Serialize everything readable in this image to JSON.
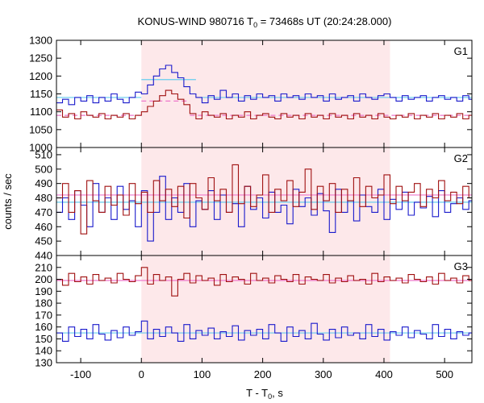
{
  "figure": {
    "title": {
      "prefix": "KONUS-WIND 980716 T",
      "subscript": "0",
      "suffix": " = 73468s UT (20:24:28.000)"
    },
    "xlabel": {
      "prefix": "T - T",
      "subscript": "0",
      "suffix": ", s"
    },
    "ylabel": "counts / sec",
    "colors": {
      "blue_series": "#1a1acc",
      "red_series": "#a01010",
      "blue_fit": "#66ccee",
      "red_fit": "#ee77cc",
      "shade": "#fde8ea"
    }
  },
  "chart_data": [
    {
      "type": "line",
      "panel": "G1",
      "title": "G1",
      "xlim": [
        -140,
        545
      ],
      "ylim": [
        1000,
        1300
      ],
      "yticks": [
        1000,
        1050,
        1100,
        1150,
        1200,
        1250,
        1300
      ],
      "xticks": [
        -100,
        0,
        100,
        200,
        300,
        400,
        500
      ],
      "shaded_interval": [
        0,
        410
      ],
      "series": [
        {
          "color": "blue",
          "x": [
            -140,
            -130,
            -120,
            -110,
            -100,
            -90,
            -80,
            -70,
            -60,
            -50,
            -40,
            -30,
            -20,
            -10,
            0,
            10,
            20,
            30,
            40,
            50,
            60,
            70,
            80,
            90,
            100,
            110,
            120,
            130,
            140,
            150,
            160,
            170,
            180,
            190,
            200,
            210,
            220,
            230,
            240,
            250,
            260,
            270,
            280,
            290,
            300,
            310,
            320,
            330,
            340,
            350,
            360,
            370,
            380,
            390,
            400,
            410,
            420,
            430,
            440,
            450,
            460,
            470,
            480,
            490,
            500,
            510,
            520,
            530,
            540
          ],
          "values": [
            1125,
            1135,
            1120,
            1140,
            1130,
            1145,
            1125,
            1140,
            1130,
            1150,
            1135,
            1125,
            1140,
            1155,
            1150,
            1175,
            1200,
            1220,
            1230,
            1210,
            1195,
            1170,
            1150,
            1140,
            1125,
            1145,
            1135,
            1160,
            1140,
            1150,
            1130,
            1145,
            1135,
            1150,
            1140,
            1145,
            1130,
            1150,
            1140,
            1145,
            1135,
            1150,
            1140,
            1145,
            1130,
            1150,
            1135,
            1140,
            1145,
            1130,
            1150,
            1140,
            1135,
            1145,
            1150,
            1140,
            1130,
            1145,
            1135,
            1140,
            1145,
            1130,
            1140,
            1145,
            1135,
            1140,
            1130,
            1145,
            1135
          ]
        },
        {
          "color": "red",
          "x": [
            -140,
            -130,
            -120,
            -110,
            -100,
            -90,
            -80,
            -70,
            -60,
            -50,
            -40,
            -30,
            -20,
            -10,
            0,
            10,
            20,
            30,
            40,
            50,
            60,
            70,
            80,
            90,
            100,
            110,
            120,
            130,
            140,
            150,
            160,
            170,
            180,
            190,
            200,
            210,
            220,
            230,
            240,
            250,
            260,
            270,
            280,
            290,
            300,
            310,
            320,
            330,
            340,
            350,
            360,
            370,
            380,
            390,
            400,
            410,
            420,
            430,
            440,
            450,
            460,
            470,
            480,
            490,
            500,
            510,
            520,
            530,
            540
          ],
          "values": [
            1105,
            1085,
            1095,
            1080,
            1100,
            1090,
            1085,
            1095,
            1080,
            1090,
            1085,
            1095,
            1080,
            1090,
            1100,
            1115,
            1130,
            1145,
            1160,
            1150,
            1135,
            1120,
            1095,
            1080,
            1100,
            1090,
            1085,
            1095,
            1080,
            1090,
            1085,
            1100,
            1080,
            1090,
            1095,
            1085,
            1080,
            1095,
            1085,
            1090,
            1080,
            1095,
            1085,
            1090,
            1080,
            1095,
            1085,
            1090,
            1080,
            1095,
            1085,
            1090,
            1080,
            1095,
            1085,
            1080,
            1090,
            1085,
            1095,
            1080,
            1090,
            1085,
            1095,
            1080,
            1090,
            1085,
            1095,
            1080,
            1090
          ]
        }
      ],
      "fits": [
        {
          "color": "blue",
          "segments": [
            [
              -140,
              1140,
              0,
              1140
            ],
            [
              0,
              1190,
              90,
              1190
            ],
            [
              90,
              1140,
              545,
              1140
            ]
          ]
        },
        {
          "color": "red",
          "segments": [
            [
              -140,
              1090,
              0,
              1090
            ],
            [
              0,
              1130,
              80,
              1130
            ],
            [
              80,
              1090,
              545,
              1090
            ]
          ],
          "dashed": true
        }
      ]
    },
    {
      "type": "line",
      "panel": "G2",
      "title": "G2",
      "xlim": [
        -140,
        545
      ],
      "ylim": [
        440,
        515
      ],
      "yticks": [
        440,
        450,
        460,
        470,
        480,
        490,
        500,
        510
      ],
      "xticks": [
        -100,
        0,
        100,
        200,
        300,
        400,
        500
      ],
      "shaded_interval": [
        0,
        410
      ],
      "series": [
        {
          "color": "blue",
          "x": [
            -140,
            -130,
            -120,
            -110,
            -100,
            -90,
            -80,
            -70,
            -60,
            -50,
            -40,
            -30,
            -20,
            -10,
            0,
            10,
            20,
            30,
            40,
            50,
            60,
            70,
            80,
            90,
            100,
            110,
            120,
            130,
            140,
            150,
            160,
            170,
            180,
            190,
            200,
            210,
            220,
            230,
            240,
            250,
            260,
            270,
            280,
            290,
            300,
            310,
            320,
            330,
            340,
            350,
            360,
            370,
            380,
            390,
            400,
            410,
            420,
            430,
            440,
            450,
            460,
            470,
            480,
            490,
            500,
            510,
            520,
            530,
            540
          ],
          "values": [
            470,
            480,
            465,
            485,
            475,
            460,
            490,
            470,
            480,
            465,
            488,
            472,
            478,
            460,
            485,
            450,
            470,
            495,
            465,
            480,
            470,
            490,
            460,
            478,
            472,
            485,
            465,
            482,
            470,
            476,
            460,
            488,
            472,
            480,
            466,
            484,
            470,
            475,
            462,
            486,
            474,
            480,
            468,
            483,
            471,
            456,
            486,
            470,
            478,
            464,
            482,
            474,
            470,
            486,
            465,
            479,
            472,
            484,
            468,
            477,
            473,
            481,
            467,
            485,
            470,
            476,
            480,
            472,
            478
          ]
        },
        {
          "color": "red",
          "x": [
            -140,
            -130,
            -120,
            -110,
            -100,
            -90,
            -80,
            -70,
            -60,
            -50,
            -40,
            -30,
            -20,
            -10,
            0,
            10,
            20,
            30,
            40,
            50,
            60,
            70,
            80,
            90,
            100,
            110,
            120,
            130,
            140,
            150,
            160,
            170,
            180,
            190,
            200,
            210,
            220,
            230,
            240,
            250,
            260,
            270,
            280,
            290,
            300,
            310,
            320,
            330,
            340,
            350,
            360,
            370,
            380,
            390,
            400,
            410,
            420,
            430,
            440,
            450,
            460,
            470,
            480,
            490,
            500,
            510,
            520,
            530,
            540
          ],
          "values": [
            480,
            490,
            470,
            485,
            455,
            492,
            478,
            470,
            488,
            475,
            482,
            468,
            490,
            476,
            484,
            470,
            492,
            478,
            486,
            474,
            488,
            466,
            490,
            480,
            472,
            494,
            478,
            486,
            470,
            503,
            476,
            488,
            474,
            482,
            496,
            470,
            486,
            478,
            492,
            474,
            484,
            500,
            472,
            488,
            478,
            490,
            470,
            486,
            478,
            494,
            474,
            488,
            480,
            482,
            496,
            476,
            488,
            478,
            484,
            490,
            474,
            486,
            480,
            492,
            478,
            484,
            476,
            488,
            480
          ]
        }
      ],
      "fits": [
        {
          "color": "blue",
          "segments": [
            [
              -140,
              477,
              545,
              477
            ]
          ]
        },
        {
          "color": "red",
          "segments": [
            [
              -140,
              482,
              545,
              482
            ]
          ]
        }
      ]
    },
    {
      "type": "line",
      "panel": "G3",
      "title": "G3",
      "xlim": [
        -140,
        545
      ],
      "ylim": [
        130,
        220
      ],
      "yticks": [
        130,
        140,
        150,
        160,
        170,
        180,
        190,
        200,
        210,
        220
      ],
      "xticks": [
        -100,
        0,
        100,
        200,
        300,
        400,
        500
      ],
      "shaded_interval": [
        0,
        410
      ],
      "series": [
        {
          "color": "blue",
          "x": [
            -140,
            -130,
            -120,
            -110,
            -100,
            -90,
            -80,
            -70,
            -60,
            -50,
            -40,
            -30,
            -20,
            -10,
            0,
            10,
            20,
            30,
            40,
            50,
            60,
            70,
            80,
            90,
            100,
            110,
            120,
            130,
            140,
            150,
            160,
            170,
            180,
            190,
            200,
            210,
            220,
            230,
            240,
            250,
            260,
            270,
            280,
            290,
            300,
            310,
            320,
            330,
            340,
            350,
            360,
            370,
            380,
            390,
            400,
            410,
            420,
            430,
            440,
            450,
            460,
            470,
            480,
            490,
            500,
            510,
            520,
            530,
            540
          ],
          "values": [
            155,
            148,
            160,
            152,
            158,
            150,
            162,
            154,
            149,
            157,
            151,
            160,
            153,
            156,
            165,
            150,
            158,
            152,
            160,
            155,
            148,
            162,
            150,
            157,
            153,
            159,
            150,
            156,
            152,
            161,
            149,
            157,
            153,
            158,
            150,
            162,
            155,
            148,
            160,
            152,
            157,
            150,
            163,
            154,
            149,
            158,
            151,
            160,
            153,
            155,
            150,
            162,
            152,
            158,
            149,
            156,
            153,
            160,
            151,
            157,
            154,
            150,
            162,
            152,
            158,
            150,
            156,
            153,
            155
          ]
        },
        {
          "color": "red",
          "x": [
            -140,
            -130,
            -120,
            -110,
            -100,
            -90,
            -80,
            -70,
            -60,
            -50,
            -40,
            -30,
            -20,
            -10,
            0,
            10,
            20,
            30,
            40,
            50,
            60,
            70,
            80,
            90,
            100,
            110,
            120,
            130,
            140,
            150,
            160,
            170,
            180,
            190,
            200,
            210,
            220,
            230,
            240,
            250,
            260,
            270,
            280,
            290,
            300,
            310,
            320,
            330,
            340,
            350,
            360,
            370,
            380,
            390,
            400,
            410,
            420,
            430,
            440,
            450,
            460,
            470,
            480,
            490,
            500,
            510,
            520,
            530,
            540
          ],
          "values": [
            200,
            195,
            205,
            198,
            202,
            196,
            204,
            199,
            201,
            197,
            205,
            200,
            198,
            203,
            210,
            196,
            204,
            199,
            202,
            186,
            200,
            205,
            197,
            203,
            199,
            201,
            195,
            204,
            198,
            202,
            200,
            196,
            205,
            199,
            201,
            197,
            203,
            200,
            198,
            204,
            196,
            202,
            200,
            199,
            204,
            197,
            201,
            198,
            203,
            199,
            200,
            196,
            205,
            198,
            202,
            199,
            201,
            197,
            204,
            200,
            198,
            202,
            196,
            205,
            199,
            201,
            197,
            203,
            199
          ]
        }
      ],
      "fits": [
        {
          "color": "blue",
          "segments": [
            [
              -140,
              155,
              545,
              155
            ]
          ]
        },
        {
          "color": "red",
          "segments": [
            [
              -140,
              199,
              545,
              199
            ]
          ]
        }
      ]
    }
  ]
}
